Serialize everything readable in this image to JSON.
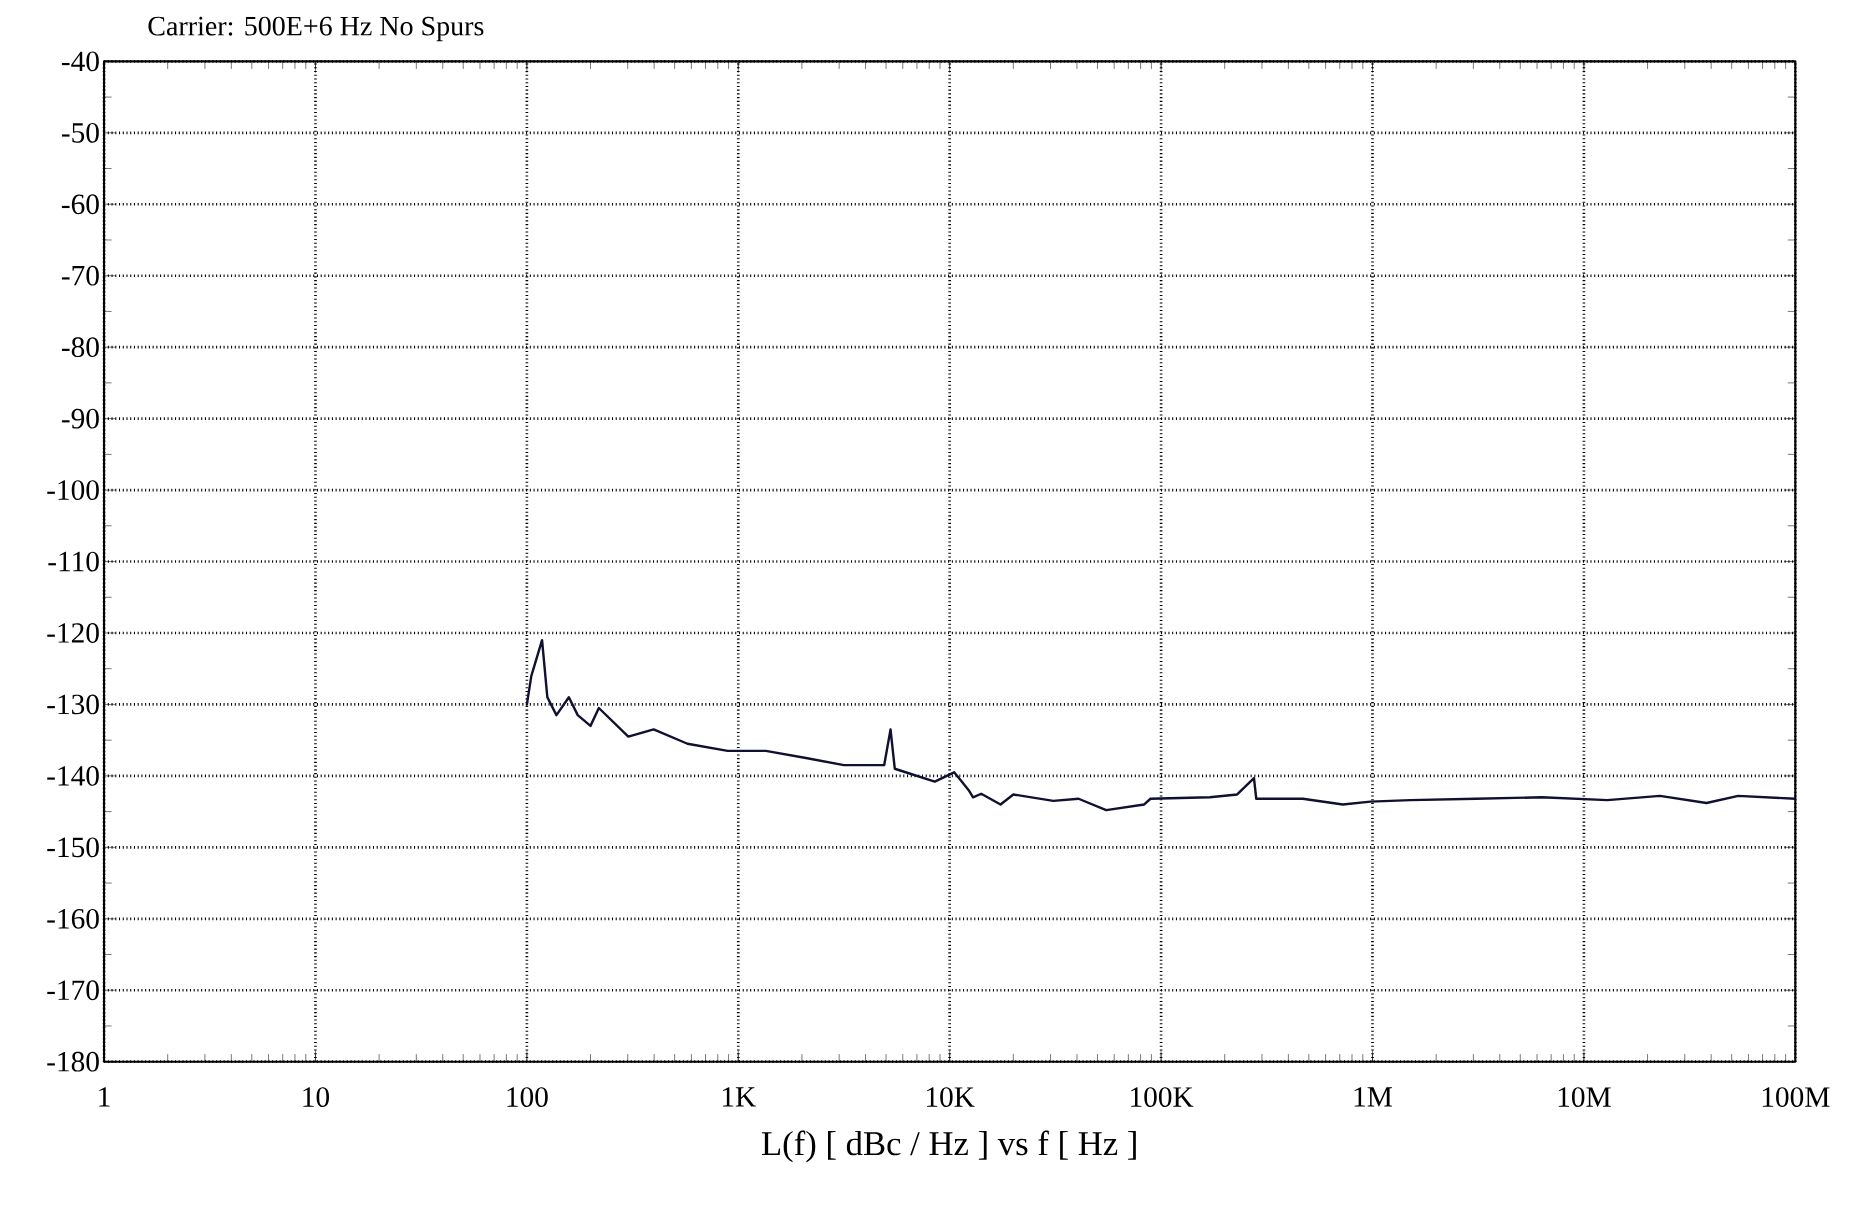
{
  "chart_data": {
    "type": "line",
    "title": "Carrier: 500E+6 Hz   No Spurs",
    "xlabel": "L(f)  [ dBc / Hz ]  vs  f  [ Hz ]",
    "log": "x",
    "grid": true,
    "color": "#101030",
    "x": [
      100,
      105,
      118,
      125,
      138,
      158,
      174,
      200,
      219,
      302,
      398,
      575,
      891,
      1350,
      2090,
      3160,
      4900,
      5250,
      5500,
      8500,
      10500,
      11200,
      12300,
      12900,
      14100,
      17400,
      20000,
      30900,
      40700,
      55000,
      83200,
      89100,
      170000,
      229000,
      275000,
      282000,
      468000,
      724000,
      977000,
      1510000,
      3090000,
      6310000,
      12900000,
      22900000,
      38000000,
      53700000,
      100000000
    ],
    "values": [
      -130,
      -126,
      -121,
      -129,
      -131.5,
      -129,
      -131.5,
      -133,
      -130.5,
      -134.5,
      -133.5,
      -135.5,
      -136.5,
      -136.5,
      -137.5,
      -138.5,
      -138.5,
      -133.5,
      -139,
      -140.8,
      -139.5,
      -140.5,
      -142,
      -143,
      -142.5,
      -144,
      -142.6,
      -143.5,
      -143.2,
      -144.8,
      -144,
      -143.2,
      -143,
      -142.6,
      -140.3,
      -143.2,
      -143.2,
      -144,
      -143.6,
      -143.4,
      -143.2,
      -143,
      -143.4,
      -142.8,
      -143.8,
      -142.8,
      -143.2
    ],
    "xlim": [
      1,
      100000000
    ],
    "xticks": [
      1,
      10,
      100,
      {
        "value": 1000,
        "label": "1K"
      },
      {
        "value": 10000,
        "label": "10K"
      },
      {
        "value": 100000,
        "label": "100K"
      },
      {
        "value": 1000000,
        "label": "1M"
      },
      {
        "value": 10000000,
        "label": "10M"
      },
      {
        "value": 100000000,
        "label": "100M"
      }
    ],
    "ylim": [
      -180,
      -40
    ],
    "yticks": [
      -180,
      -170,
      -160,
      -150,
      -140,
      -130,
      -120,
      -110,
      -100,
      -90,
      -80,
      -70,
      -60,
      -50,
      -40
    ]
  }
}
